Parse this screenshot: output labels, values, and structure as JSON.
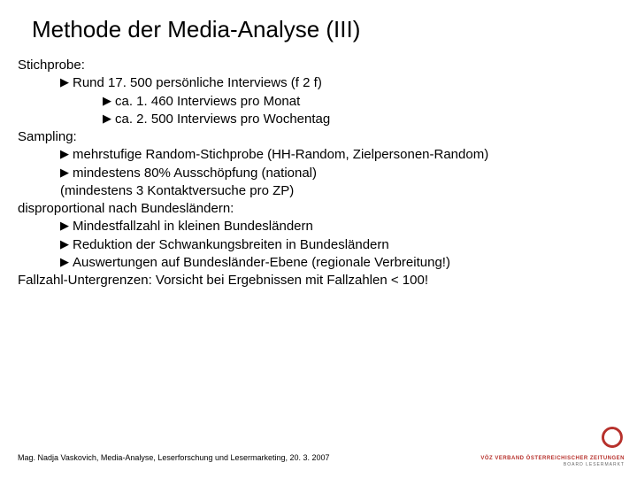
{
  "title": "Methode der Media-Analyse (III)",
  "lines": [
    {
      "level": 0,
      "bullet": false,
      "text": "Stichprobe:"
    },
    {
      "level": 1,
      "bullet": true,
      "text": "Rund 17. 500 persönliche Interviews (f 2 f)"
    },
    {
      "level": 2,
      "bullet": true,
      "text": "ca. 1. 460 Interviews pro Monat"
    },
    {
      "level": 2,
      "bullet": true,
      "text": "ca. 2. 500 Interviews pro Wochentag"
    },
    {
      "level": 0,
      "bullet": false,
      "text": "Sampling:"
    },
    {
      "level": 1,
      "bullet": true,
      "text": "mehrstufige Random-Stichprobe (HH-Random, Zielpersonen-Random)"
    },
    {
      "level": 1,
      "bullet": true,
      "text": "mindestens 80% Ausschöpfung (national)"
    },
    {
      "level": 1,
      "bullet": false,
      "text": "(mindestens 3 Kontaktversuche pro ZP)"
    },
    {
      "level": 0,
      "bullet": false,
      "text": "    disproportional nach Bundesländern:"
    },
    {
      "level": 1,
      "bullet": true,
      "text": "Mindestfallzahl in kleinen Bundesländern"
    },
    {
      "level": 1,
      "bullet": true,
      "text": "Reduktion der Schwankungsbreiten in Bundesländern"
    },
    {
      "level": 1,
      "bullet": true,
      "text": "Auswertungen auf Bundesländer-Ebene (regionale Verbreitung!)"
    },
    {
      "level": 0,
      "bullet": false,
      "text": "Fallzahl-Untergrenzen: Vorsicht bei Ergebnissen mit Fallzahlen < 100!"
    }
  ],
  "footer": "Mag. Nadja Vaskovich, Media-Analyse, Leserforschung und Lesermarketing, 20. 3. 2007",
  "logo": {
    "color": "#b7312c",
    "line1": "VÖZ VERBAND ÖSTERREICHISCHER ZEITUNGEN",
    "line2": "BOARD LESERMARKT"
  },
  "style": {
    "title_fontsize": 26,
    "body_fontsize": 15,
    "footer_fontsize": 9,
    "text_color": "#000000",
    "background_color": "#ffffff",
    "bullet_char": "▶"
  }
}
